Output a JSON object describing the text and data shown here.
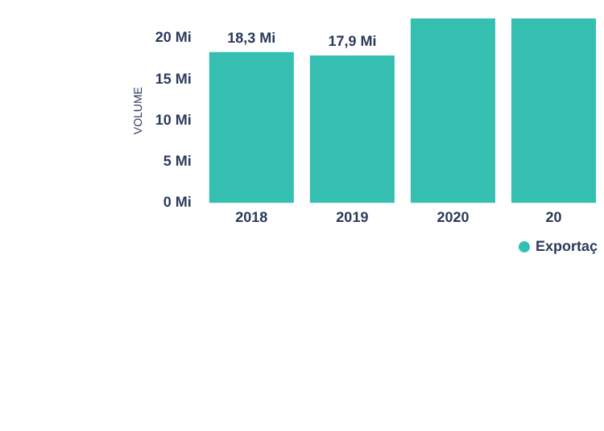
{
  "chart_data": {
    "type": "bar",
    "ylabel": "VOLUME",
    "categories": [
      "2018",
      "2019",
      "2020",
      "20"
    ],
    "series": [
      {
        "name": "Exportaç",
        "color": "#34bfb1",
        "values": [
          18.3,
          17.9,
          22.4,
          22.4
        ],
        "value_labels": [
          "18,3 Mi",
          "17,9 Mi",
          null,
          null
        ]
      }
    ],
    "ylim": [
      0,
      22.4
    ],
    "yticks": [
      {
        "value": 0,
        "label": "0 Mi"
      },
      {
        "value": 5,
        "label": "5 Mi"
      },
      {
        "value": 10,
        "label": "10 Mi"
      },
      {
        "value": 15,
        "label": "15 Mi"
      },
      {
        "value": 20,
        "label": "20 Mi"
      }
    ],
    "grid": false,
    "legend": "bottom right"
  }
}
